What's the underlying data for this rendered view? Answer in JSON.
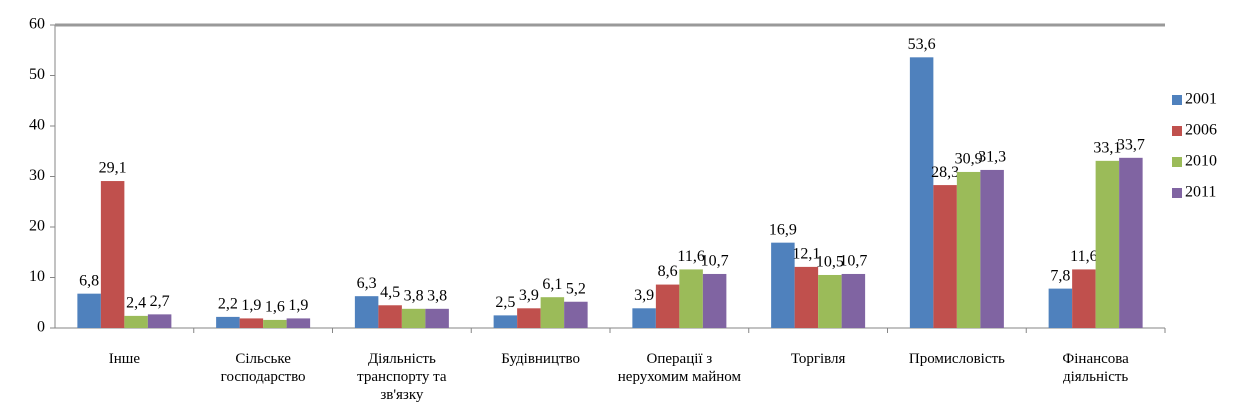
{
  "chart_data": {
    "type": "bar",
    "categories": [
      "Інше",
      "Сільське господарство",
      "Діяльність транспорту та зв'язку",
      "Будівництво",
      "Операції з нерухомим майном",
      "Торгівля",
      "Промисловість",
      "Фінансова діяльність"
    ],
    "series": [
      {
        "name": "2001",
        "color": "#4f81bd",
        "values": [
          6.8,
          2.2,
          6.3,
          2.5,
          3.9,
          16.9,
          53.6,
          7.8
        ],
        "value_labels": [
          "6,8",
          "2,2",
          "6,3",
          "2,5",
          "3,9",
          "16,9",
          "53,6",
          "7,8"
        ]
      },
      {
        "name": "2006",
        "color": "#c0504d",
        "values": [
          29.1,
          1.9,
          4.5,
          3.9,
          8.6,
          12.1,
          28.3,
          11.6
        ],
        "value_labels": [
          "29,1",
          "1,9",
          "4,5",
          "3,9",
          "8,6",
          "12,1",
          "28,3",
          "11,6"
        ]
      },
      {
        "name": "2010",
        "color": "#9bbb59",
        "values": [
          2.4,
          1.6,
          3.8,
          6.1,
          11.6,
          10.5,
          30.9,
          33.1
        ],
        "value_labels": [
          "2,4",
          "1,6",
          "3,8",
          "6,1",
          "11,6",
          "10,5",
          "30,9",
          "33,1"
        ]
      },
      {
        "name": "2011",
        "color": "#8064a2",
        "values": [
          2.7,
          1.9,
          3.8,
          5.2,
          10.7,
          10.7,
          31.3,
          33.7
        ],
        "value_labels": [
          "2,7",
          "1,9",
          "3,8",
          "5,2",
          "10,7",
          "10,7",
          "31,3",
          "33,7"
        ]
      }
    ],
    "ylim": [
      0,
      60
    ],
    "yticks": [
      0,
      10,
      20,
      30,
      40,
      50,
      60
    ],
    "grid": false,
    "legend": "right"
  }
}
